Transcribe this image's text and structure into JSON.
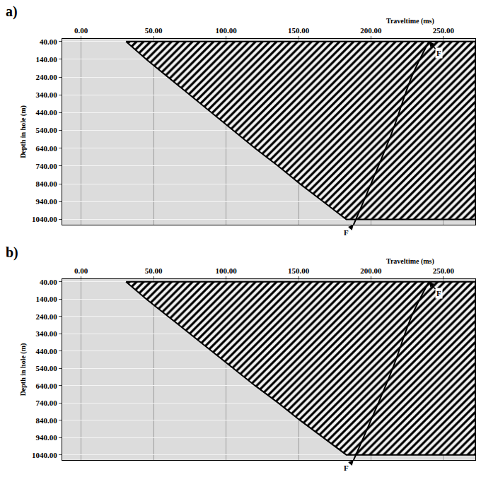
{
  "chart_data": [
    {
      "type": "line",
      "title": "a)",
      "xlabel": "Traveltime (ms)",
      "ylabel": "Depth in hole (m)",
      "xlim": [
        -13,
        272
      ],
      "ylim": [
        25,
        1070
      ],
      "xticks": [
        {
          "value": 0,
          "label": "0.00"
        },
        {
          "value": 50,
          "label": "50.00"
        },
        {
          "value": 100,
          "label": "100.00"
        },
        {
          "value": 150,
          "label": "150.00"
        },
        {
          "value": 200,
          "label": "200.00"
        },
        {
          "value": 250,
          "label": "250.00"
        }
      ],
      "yticks": [
        {
          "value": 40,
          "label": "40.00"
        },
        {
          "value": 140,
          "label": "140.00"
        },
        {
          "value": 240,
          "label": "240.00"
        },
        {
          "value": 340,
          "label": "340.00"
        },
        {
          "value": 440,
          "label": "440.00"
        },
        {
          "value": 540,
          "label": "540.00"
        },
        {
          "value": 640,
          "label": "640.00"
        },
        {
          "value": 740,
          "label": "740.00"
        },
        {
          "value": 840,
          "label": "840.00"
        },
        {
          "value": 940,
          "label": "940.00"
        },
        {
          "value": 1040,
          "label": "1040.00"
        }
      ],
      "grid": true,
      "series": [
        {
          "type": "area",
          "color": "#000000",
          "x": [
            31,
            45,
            60,
            75,
            90,
            105,
            120,
            136,
            151,
            167,
            183
          ],
          "y": [
            40,
            140,
            240,
            340,
            440,
            540,
            640,
            740,
            840,
            940,
            1040
          ]
        },
        {
          "type": "line",
          "color": "#000000",
          "x": [
            188,
            200,
            215,
            228,
            240
          ],
          "y": [
            1070,
            840,
            540,
            240,
            40
          ]
        }
      ],
      "annotations": [
        {
          "text": "F",
          "x": 240,
          "y": 40
        },
        {
          "text": "F",
          "x": 188,
          "y": 1070
        }
      ]
    },
    {
      "type": "line",
      "title": "b)",
      "xlabel": "Traveltime (ms)",
      "ylabel": "Depth in hole (m)",
      "xlim": [
        -13,
        272
      ],
      "ylim": [
        25,
        1070
      ],
      "xticks": [
        {
          "value": 0,
          "label": "0.00"
        },
        {
          "value": 50,
          "label": "50.00"
        },
        {
          "value": 100,
          "label": "100.00"
        },
        {
          "value": 150,
          "label": "150.00"
        },
        {
          "value": 200,
          "label": "200.00"
        },
        {
          "value": 250,
          "label": "250.00"
        }
      ],
      "yticks": [
        {
          "value": 40,
          "label": "40.00"
        },
        {
          "value": 140,
          "label": "140.00"
        },
        {
          "value": 240,
          "label": "240.00"
        },
        {
          "value": 340,
          "label": "340.00"
        },
        {
          "value": 440,
          "label": "440.00"
        },
        {
          "value": 540,
          "label": "540.00"
        },
        {
          "value": 640,
          "label": "640.00"
        },
        {
          "value": 740,
          "label": "740.00"
        },
        {
          "value": 840,
          "label": "840.00"
        },
        {
          "value": 940,
          "label": "940.00"
        },
        {
          "value": 1040,
          "label": "1040.00"
        }
      ],
      "grid": true,
      "series": [
        {
          "type": "area",
          "color": "#000000",
          "x": [
            31,
            45,
            60,
            75,
            90,
            105,
            120,
            136,
            151,
            167,
            183
          ],
          "y": [
            40,
            140,
            240,
            340,
            440,
            540,
            640,
            740,
            840,
            940,
            1040
          ]
        },
        {
          "type": "line",
          "color": "#000000",
          "x": [
            188,
            200,
            215,
            228,
            240
          ],
          "y": [
            1070,
            840,
            540,
            240,
            40
          ]
        }
      ],
      "annotations": [
        {
          "text": "F",
          "x": 240,
          "y": 40
        },
        {
          "text": "F",
          "x": 188,
          "y": 1070
        }
      ]
    }
  ]
}
